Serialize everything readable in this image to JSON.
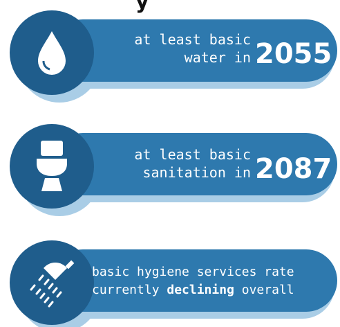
{
  "heading": "y",
  "items": [
    {
      "line1": "at least basic",
      "line2": "water in",
      "year": "2055"
    },
    {
      "line1": "at least basic",
      "line2": "sanitation in",
      "year": "2087"
    },
    {
      "line1": "basic hygiene services rate",
      "line2_start": "currently ",
      "line2_bold": "declining",
      "line2_end": " overall"
    }
  ]
}
